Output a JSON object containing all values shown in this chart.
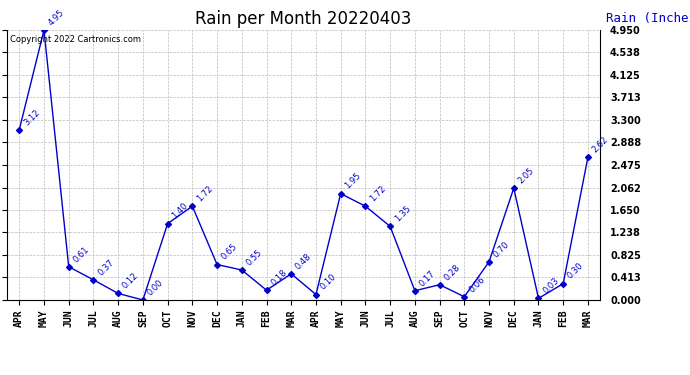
{
  "title": "Rain per Month 20220403",
  "legend_label": "Rain (Inches)",
  "copyright_text": "Copyright 2022 Cartronics.com",
  "x_labels": [
    "APR",
    "MAY",
    "JUN",
    "JUL",
    "AUG",
    "SEP",
    "OCT",
    "NOV",
    "DEC",
    "JAN",
    "FEB",
    "MAR",
    "APR",
    "MAY",
    "JUN",
    "JUL",
    "AUG",
    "SEP",
    "OCT",
    "NOV",
    "DEC",
    "JAN",
    "FEB",
    "MAR"
  ],
  "y_values": [
    3.12,
    4.95,
    0.61,
    0.37,
    0.12,
    0.0,
    1.4,
    1.72,
    0.65,
    0.55,
    0.18,
    0.48,
    0.1,
    1.95,
    1.72,
    1.35,
    0.17,
    0.28,
    0.06,
    0.7,
    2.05,
    0.03,
    0.3,
    2.62
  ],
  "point_labels": [
    "3.12",
    "4.95",
    "0.61",
    "0.37",
    "0.12",
    "0.00",
    "1.40",
    "1.72",
    "0.65",
    "0.55",
    "0.18",
    "0.48",
    "0.10",
    "1.95",
    "1.72",
    "1.35",
    "0.17",
    "0.28",
    "0.06",
    "0.70",
    "2.05",
    "0.03",
    "0.30",
    "2.62"
  ],
  "line_color": "#0000cc",
  "marker_color": "#0000cc",
  "label_color": "#0000cc",
  "grid_color": "#bbbbbb",
  "background_color": "#ffffff",
  "ylim": [
    0.0,
    4.95
  ],
  "yticks": [
    0.0,
    0.413,
    0.825,
    1.238,
    1.65,
    2.062,
    2.475,
    2.888,
    3.3,
    3.713,
    4.125,
    4.538,
    4.95
  ],
  "title_fontsize": 12,
  "label_fontsize": 6,
  "tick_fontsize": 7,
  "legend_fontsize": 9,
  "copyright_fontsize": 6
}
